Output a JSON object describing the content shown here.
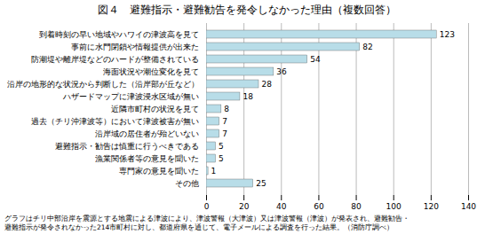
{
  "chart_data": {
    "type": "bar",
    "orientation": "horizontal",
    "title": "図４　避難指示・避難勧告を発令しなかった理由（複数回答）",
    "categories": [
      "到着時刻の早い地域やハワイの津波高を見て",
      "事前に水門閉鎖や情報提供が出来た",
      "防潮堤や離岸堤などのハードが整備されている",
      "海面状況や潮位変化を見て",
      "沿岸の地形的な状況から判断した（沿岸部が丘など）",
      "ハザードマップに津波浸水区域が無い",
      "近隣市町村の状況を見て",
      "過去（チリ沖津波等）において津波被害が無い",
      "沿岸域の居住者が殆どいない",
      "避難指示・勧告は慎重に行うべきである",
      "漁業関係者等の意見を聞いた",
      "専門家の意見を聞いた",
      "その他"
    ],
    "values": [
      123,
      82,
      54,
      36,
      28,
      18,
      8,
      7,
      7,
      5,
      5,
      1,
      25
    ],
    "color": "#b8dde8",
    "xlim": [
      0,
      140
    ],
    "xticks": [
      0,
      20,
      40,
      60,
      80,
      100,
      120,
      140
    ],
    "grid": true,
    "data_labels": true,
    "annotations": [
      "グラフはチリ中部沿岸を震源とする地震による津波により、津波警報（大津波）又は津波警報（津波）が発表され、避難勧告・",
      "避難指示が発令されなかった214市町村に対し、都道府県を通じて、電子メールによる調査を行った結果。（消防庁調べ）"
    ]
  }
}
